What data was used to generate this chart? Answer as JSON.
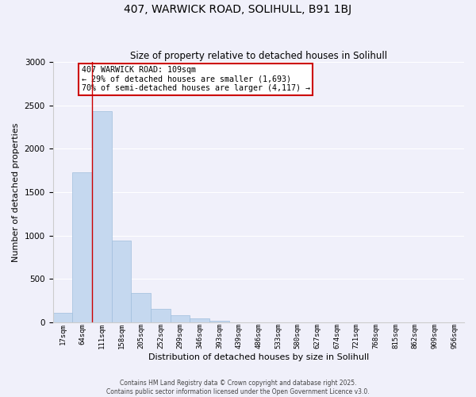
{
  "title": "407, WARWICK ROAD, SOLIHULL, B91 1BJ",
  "subtitle": "Size of property relative to detached houses in Solihull",
  "xlabel": "Distribution of detached houses by size in Solihull",
  "ylabel": "Number of detached properties",
  "bar_color": "#c5d8ef",
  "bar_edge_color": "#a0bedd",
  "background_color": "#f0f0fa",
  "grid_color": "#ffffff",
  "vline_color": "#cc0000",
  "vline_x_idx": 2,
  "annotation_text": "407 WARWICK ROAD: 109sqm\n← 29% of detached houses are smaller (1,693)\n70% of semi-detached houses are larger (4,117) →",
  "annotation_box_color": "#cc0000",
  "categories": [
    "17sqm",
    "64sqm",
    "111sqm",
    "158sqm",
    "205sqm",
    "252sqm",
    "299sqm",
    "346sqm",
    "393sqm",
    "439sqm",
    "486sqm",
    "533sqm",
    "580sqm",
    "627sqm",
    "674sqm",
    "721sqm",
    "768sqm",
    "815sqm",
    "862sqm",
    "909sqm",
    "956sqm"
  ],
  "values": [
    110,
    1730,
    2430,
    940,
    340,
    155,
    80,
    40,
    20,
    0,
    0,
    0,
    0,
    0,
    0,
    0,
    0,
    0,
    0,
    0,
    0
  ],
  "ylim": [
    0,
    3000
  ],
  "yticks": [
    0,
    500,
    1000,
    1500,
    2000,
    2500,
    3000
  ],
  "footer1": "Contains HM Land Registry data © Crown copyright and database right 2025.",
  "footer2": "Contains public sector information licensed under the Open Government Licence v3.0."
}
